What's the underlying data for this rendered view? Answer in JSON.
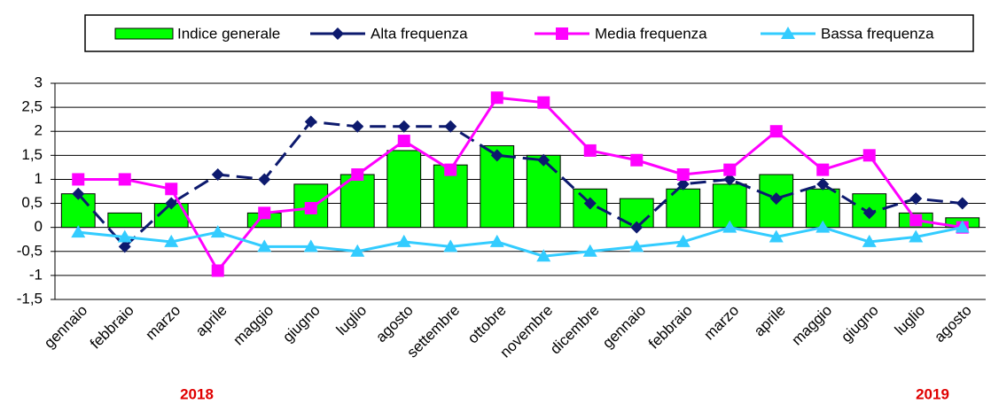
{
  "chart_data": {
    "type": "bar",
    "categories": [
      "gennaio",
      "febbraio",
      "marzo",
      "aprile",
      "maggio",
      "giugno",
      "luglio",
      "agosto",
      "settembre",
      "ottobre",
      "novembre",
      "dicembre",
      "gennaio",
      "febbraio",
      "marzo",
      "aprile",
      "maggio",
      "giugno",
      "luglio",
      "agosto"
    ],
    "series": [
      {
        "name": "Indice generale",
        "type": "bar",
        "color": "#00ff00",
        "values": [
          0.7,
          0.3,
          0.5,
          0,
          0.3,
          0.9,
          1.1,
          1.6,
          1.3,
          1.7,
          1.5,
          0.8,
          0.6,
          0.8,
          0.9,
          1.1,
          0.8,
          0.7,
          0.3,
          0.2
        ]
      },
      {
        "name": "Alta frequenza",
        "type": "line",
        "marker": "diamond",
        "dash": true,
        "color": "#0d1a6e",
        "values": [
          0.7,
          -0.4,
          0.5,
          1.1,
          1.0,
          2.2,
          2.1,
          2.1,
          2.1,
          1.5,
          1.4,
          0.5,
          0.0,
          0.9,
          1.0,
          0.6,
          0.9,
          0.3,
          0.6,
          0.5
        ]
      },
      {
        "name": "Media frequenza",
        "type": "line",
        "marker": "square",
        "dash": false,
        "color": "#ff00ff",
        "values": [
          1.0,
          1.0,
          0.8,
          -0.9,
          0.3,
          0.4,
          1.1,
          1.8,
          1.2,
          2.7,
          2.6,
          1.6,
          1.4,
          1.1,
          1.2,
          2.0,
          1.2,
          1.5,
          0.15,
          0.0
        ]
      },
      {
        "name": "Bassa frequenza",
        "type": "line",
        "marker": "triangle",
        "dash": false,
        "color": "#33ccff",
        "values": [
          -0.1,
          -0.2,
          -0.3,
          -0.1,
          -0.4,
          -0.4,
          -0.5,
          -0.3,
          -0.4,
          -0.3,
          -0.6,
          -0.5,
          -0.4,
          -0.3,
          0.0,
          -0.2,
          0.0,
          -0.3,
          -0.2,
          0.0
        ]
      }
    ],
    "ylim": [
      -1.5,
      3
    ],
    "yticks": [
      {
        "value": -1.5,
        "label": "-1,5"
      },
      -1,
      {
        "value": -0.5,
        "label": "-0,5"
      },
      0,
      {
        "value": 0.5,
        "label": "0,5"
      },
      1,
      {
        "value": 1.5,
        "label": "1,5"
      },
      2,
      {
        "value": 2.5,
        "label": "2,5"
      },
      3
    ],
    "grid": true,
    "legend": "top",
    "annotations": [
      "2018",
      "2019"
    ]
  }
}
